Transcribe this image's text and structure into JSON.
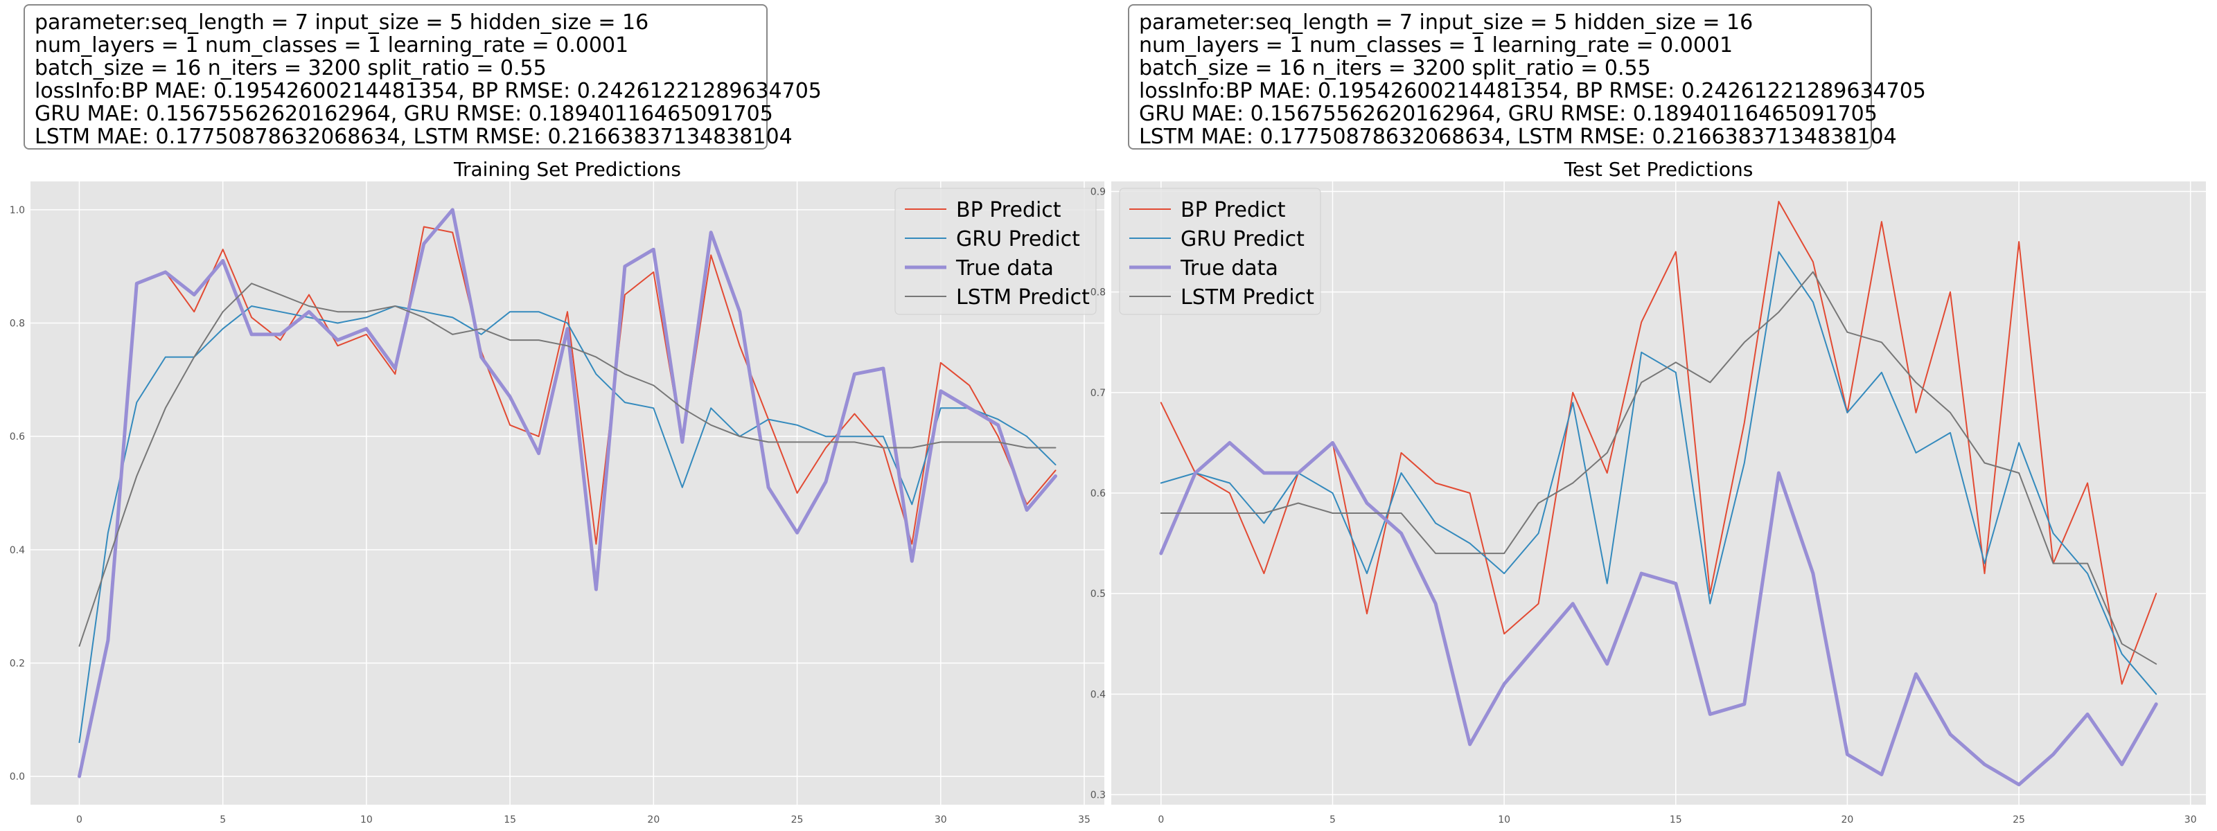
{
  "info": {
    "lines": [
      "parameter:seq_length = 7 input_size = 5 hidden_size = 16",
      "num_layers = 1 num_classes = 1 learning_rate = 0.0001",
      "batch_size = 16 n_iters = 3200 split_ratio = 0.55",
      "lossInfo:BP MAE: 0.19542600214481354, BP RMSE: 0.24261221289634705",
      "GRU MAE: 0.15675562620162964, GRU RMSE: 0.18940116465091705",
      "LSTM MAE: 0.17750878632068634, LSTM RMSE: 0.21663837134838104"
    ]
  },
  "colors": {
    "BP Predict": "#E24A33",
    "GRU Predict": "#348ABD",
    "True data": "#988ED5",
    "LSTM Predict": "#777777",
    "background": "#E5E5E5",
    "grid": "#FFFFFF"
  },
  "chart_data": [
    {
      "type": "line",
      "title": "Training Set Predictions",
      "xlabel": "",
      "ylabel": "",
      "xlim": [
        -1.7,
        35.7
      ],
      "ylim": [
        -0.05,
        1.05
      ],
      "xticks": [
        0,
        5,
        10,
        15,
        20,
        25,
        30,
        35
      ],
      "yticks": [
        0.0,
        0.2,
        0.4,
        0.6,
        0.8,
        1.0
      ],
      "xtick_labels": [
        "0",
        "5",
        "10",
        "15",
        "20",
        "25",
        "30",
        "35"
      ],
      "ytick_labels": [
        "0.0",
        "0.2",
        "0.4",
        "0.6",
        "0.8",
        "1.0"
      ],
      "grid": true,
      "legend_placement": "top-right",
      "x": [
        0,
        1,
        2,
        3,
        4,
        5,
        6,
        7,
        8,
        9,
        10,
        11,
        12,
        13,
        14,
        15,
        16,
        17,
        18,
        19,
        20,
        21,
        22,
        23,
        24,
        25,
        26,
        27,
        28,
        29,
        30,
        31,
        32,
        33,
        34
      ],
      "series": [
        {
          "name": "BP Predict",
          "values": [
            0.0,
            0.24,
            0.87,
            0.89,
            0.82,
            0.93,
            0.81,
            0.77,
            0.85,
            0.76,
            0.78,
            0.71,
            0.97,
            0.96,
            0.75,
            0.62,
            0.6,
            0.82,
            0.41,
            0.85,
            0.89,
            0.59,
            0.92,
            0.76,
            0.63,
            0.5,
            0.58,
            0.64,
            0.58,
            0.41,
            0.73,
            0.69,
            0.6,
            0.48,
            0.54
          ]
        },
        {
          "name": "GRU Predict",
          "values": [
            0.06,
            0.43,
            0.66,
            0.74,
            0.74,
            0.79,
            0.83,
            0.82,
            0.81,
            0.8,
            0.81,
            0.83,
            0.82,
            0.81,
            0.78,
            0.82,
            0.82,
            0.8,
            0.71,
            0.66,
            0.65,
            0.51,
            0.65,
            0.6,
            0.63,
            0.62,
            0.6,
            0.6,
            0.6,
            0.48,
            0.65,
            0.65,
            0.63,
            0.6,
            0.55
          ]
        },
        {
          "name": "True data",
          "values": [
            0.0,
            0.24,
            0.87,
            0.89,
            0.85,
            0.91,
            0.78,
            0.78,
            0.82,
            0.77,
            0.79,
            0.72,
            0.94,
            1.0,
            0.74,
            0.67,
            0.57,
            0.79,
            0.33,
            0.9,
            0.93,
            0.59,
            0.96,
            0.82,
            0.51,
            0.43,
            0.52,
            0.71,
            0.72,
            0.38,
            0.68,
            0.65,
            0.62,
            0.47,
            0.53
          ]
        },
        {
          "name": "LSTM Predict",
          "values": [
            0.23,
            0.38,
            0.53,
            0.65,
            0.74,
            0.82,
            0.87,
            0.85,
            0.83,
            0.82,
            0.82,
            0.83,
            0.81,
            0.78,
            0.79,
            0.77,
            0.77,
            0.76,
            0.74,
            0.71,
            0.69,
            0.65,
            0.62,
            0.6,
            0.59,
            0.59,
            0.59,
            0.59,
            0.58,
            0.58,
            0.59,
            0.59,
            0.59,
            0.58,
            0.58
          ]
        }
      ]
    },
    {
      "type": "line",
      "title": "Test Set Predictions",
      "xlabel": "",
      "ylabel": "",
      "xlim": [
        -1.45,
        30.45
      ],
      "ylim": [
        0.29,
        0.91
      ],
      "xticks": [
        0,
        5,
        10,
        15,
        20,
        25,
        30
      ],
      "yticks": [
        0.3,
        0.4,
        0.5,
        0.6,
        0.7,
        0.8,
        0.9
      ],
      "xtick_labels": [
        "0",
        "5",
        "10",
        "15",
        "20",
        "25",
        "30"
      ],
      "ytick_labels": [
        "0.3",
        "0.4",
        "0.5",
        "0.6",
        "0.7",
        "0.8",
        "0.9"
      ],
      "grid": true,
      "legend_placement": "top-left",
      "x": [
        0,
        1,
        2,
        3,
        4,
        5,
        6,
        7,
        8,
        9,
        10,
        11,
        12,
        13,
        14,
        15,
        16,
        17,
        18,
        19,
        20,
        21,
        22,
        23,
        24,
        25,
        26,
        27,
        28,
        29
      ],
      "series": [
        {
          "name": "BP Predict",
          "values": [
            0.69,
            0.62,
            0.6,
            0.52,
            0.62,
            0.65,
            0.48,
            0.64,
            0.61,
            0.6,
            0.46,
            0.49,
            0.7,
            0.62,
            0.77,
            0.84,
            0.5,
            0.67,
            0.89,
            0.83,
            0.68,
            0.87,
            0.68,
            0.8,
            0.52,
            0.85,
            0.53,
            0.61,
            0.41,
            0.5
          ]
        },
        {
          "name": "GRU Predict",
          "values": [
            0.61,
            0.62,
            0.61,
            0.57,
            0.62,
            0.6,
            0.52,
            0.62,
            0.57,
            0.55,
            0.52,
            0.56,
            0.69,
            0.51,
            0.74,
            0.72,
            0.49,
            0.63,
            0.84,
            0.79,
            0.68,
            0.72,
            0.64,
            0.66,
            0.53,
            0.65,
            0.56,
            0.52,
            0.44,
            0.4
          ]
        },
        {
          "name": "True data",
          "values": [
            0.54,
            0.62,
            0.65,
            0.62,
            0.62,
            0.65,
            0.59,
            0.56,
            0.49,
            0.35,
            0.41,
            0.45,
            0.49,
            0.43,
            0.52,
            0.51,
            0.38,
            0.39,
            0.62,
            0.52,
            0.34,
            0.32,
            0.42,
            0.36,
            0.33,
            0.31,
            0.34,
            0.38,
            0.33,
            0.39
          ]
        },
        {
          "name": "LSTM Predict",
          "values": [
            0.58,
            0.58,
            0.58,
            0.58,
            0.59,
            0.58,
            0.58,
            0.58,
            0.54,
            0.54,
            0.54,
            0.59,
            0.61,
            0.64,
            0.71,
            0.73,
            0.71,
            0.75,
            0.78,
            0.82,
            0.76,
            0.75,
            0.71,
            0.68,
            0.63,
            0.62,
            0.53,
            0.53,
            0.45,
            0.43
          ]
        }
      ]
    }
  ]
}
